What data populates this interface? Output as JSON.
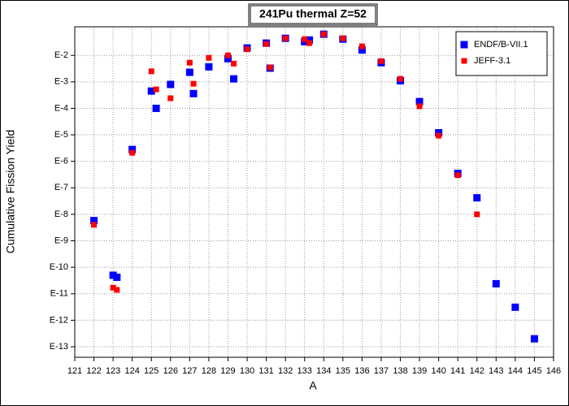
{
  "chart_data": {
    "type": "scatter",
    "title": "241Pu thermal Z=52",
    "xlabel": "A",
    "ylabel": "Cumulative Fission Yield",
    "xlim": [
      121,
      146
    ],
    "xticks": [
      121,
      122,
      123,
      124,
      125,
      126,
      127,
      128,
      129,
      130,
      131,
      132,
      133,
      134,
      135,
      136,
      137,
      138,
      139,
      140,
      141,
      142,
      143,
      144,
      145,
      146
    ],
    "ylim": [
      4e-14,
      0.12
    ],
    "yscale": "log",
    "yticks": [
      {
        "value": 0.01,
        "label": "E-2"
      },
      {
        "value": 0.001,
        "label": "E-3"
      },
      {
        "value": 0.0001,
        "label": "E-4"
      },
      {
        "value": 1e-05,
        "label": "E-5"
      },
      {
        "value": 1e-06,
        "label": "E-6"
      },
      {
        "value": 1e-07,
        "label": "E-7"
      },
      {
        "value": 1e-08,
        "label": "E-8"
      },
      {
        "value": 1e-09,
        "label": "E-9"
      },
      {
        "value": 1e-10,
        "label": "E-10"
      },
      {
        "value": 1e-11,
        "label": "E-11"
      },
      {
        "value": 1e-12,
        "label": "E-12"
      },
      {
        "value": 1e-13,
        "label": "E-13"
      }
    ],
    "grid": true,
    "legend": "top-right",
    "series": [
      {
        "name": "ENDF/B-VII.1",
        "color": "#0000ff",
        "marker_size": 9,
        "x": [
          122,
          123,
          123.2,
          124,
          125,
          125.25,
          126,
          127,
          127.2,
          128,
          129,
          129.3,
          130,
          131,
          131.2,
          132,
          133,
          133.25,
          134,
          135,
          136,
          137,
          138,
          139,
          140,
          141,
          142,
          143,
          144,
          145
        ],
        "values": [
          5.8e-09,
          5e-11,
          4.2e-11,
          2.8e-06,
          0.00045,
          0.0001,
          0.0008,
          0.0023,
          0.00036,
          0.0037,
          0.0075,
          0.0013,
          0.019,
          0.029,
          0.0033,
          0.044,
          0.033,
          0.038,
          0.063,
          0.041,
          0.016,
          0.0053,
          0.0011,
          0.00018,
          1.2e-05,
          3.5e-07,
          4.2e-08,
          2.4e-11,
          3.1e-12,
          2e-13
        ]
      },
      {
        "name": "JEFF-3.1",
        "color": "#ff0000",
        "marker_size": 7,
        "x": [
          122,
          123,
          123.2,
          124,
          125,
          125.25,
          126,
          127,
          127.2,
          128,
          129,
          129.3,
          130,
          131,
          131.2,
          132,
          133,
          133.25,
          134,
          135,
          136,
          137,
          138,
          139,
          140,
          141,
          142
        ],
        "values": [
          4e-09,
          1.7e-11,
          1.4e-11,
          2.1e-06,
          0.0025,
          0.00052,
          0.00024,
          0.0053,
          0.00085,
          0.0081,
          0.01,
          0.0049,
          0.017,
          0.027,
          0.0035,
          0.044,
          0.041,
          0.029,
          0.063,
          0.044,
          0.022,
          0.0061,
          0.0013,
          0.00012,
          9.3e-06,
          3e-07,
          1e-08
        ]
      }
    ]
  }
}
